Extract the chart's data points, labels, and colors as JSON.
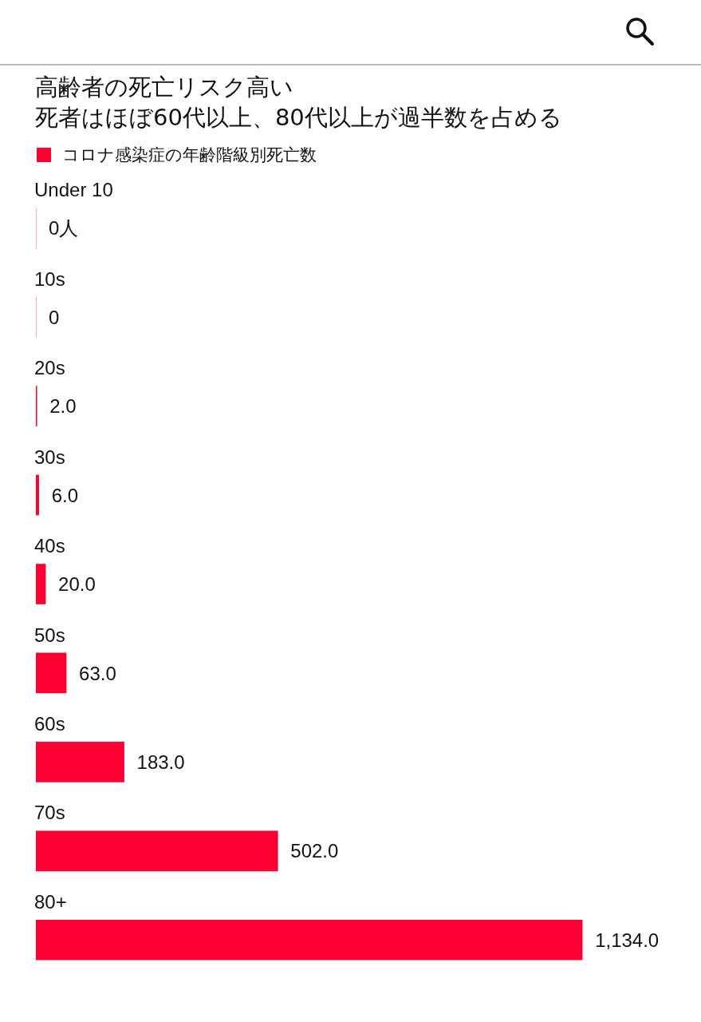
{
  "chart_data": {
    "type": "bar",
    "orientation": "horizontal",
    "title": "高齢者の死亡リスク高い",
    "subtitle": "死者はほぼ60代以上、80代以上が過半数を占める",
    "legend": "top left",
    "categories": [
      "Under 10",
      "10s",
      "20s",
      "30s",
      "40s",
      "50s",
      "60s",
      "70s",
      "80+"
    ],
    "series": [
      {
        "name": "コロナ感染症の年齢階級別死亡数",
        "color": "#ff0033",
        "values": [
          0,
          0,
          2,
          6,
          20,
          63,
          183,
          502,
          1134
        ],
        "value_labels": [
          "0人",
          "0",
          "2.0",
          "6.0",
          "20.0",
          "63.0",
          "183.0",
          "502.0",
          "1,134.0"
        ]
      }
    ]
  }
}
